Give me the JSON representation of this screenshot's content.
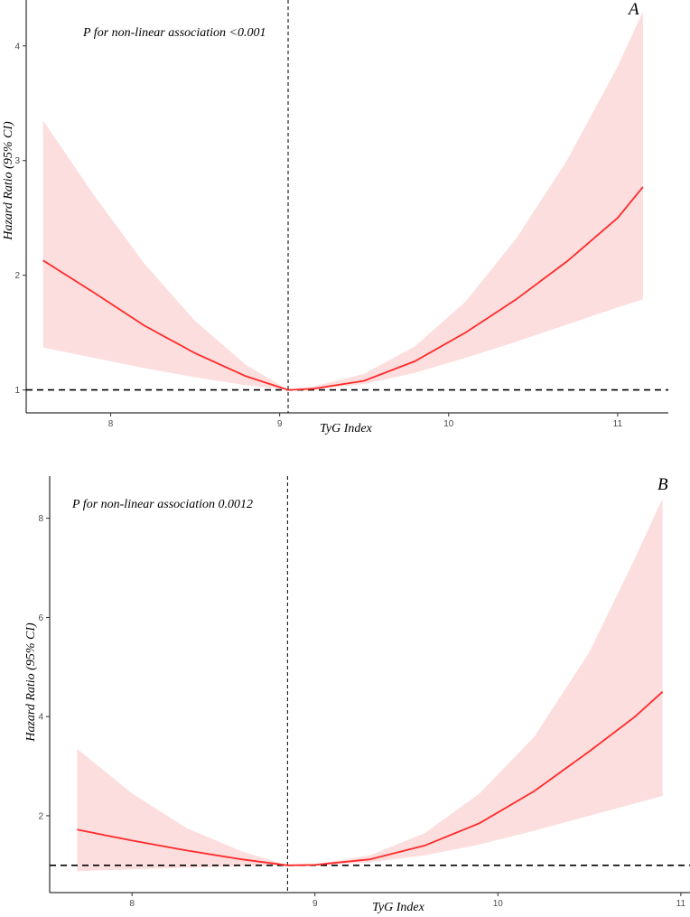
{
  "chart_data": [
    {
      "type": "line",
      "panel": "A",
      "title": "",
      "xlabel": "TyG Index",
      "ylabel": "Hazard Ratio (95% CI)",
      "annotation": "P for non-linear association <0.001",
      "xlim": [
        7.5,
        11.3
      ],
      "ylim": [
        0.8,
        4.4
      ],
      "xticks": [
        8,
        9,
        10,
        11
      ],
      "yticks": [
        1,
        2,
        3,
        4
      ],
      "reference_hr": 1,
      "reference_x": 9.05,
      "series": [
        {
          "name": "Hazard Ratio",
          "color": "#ff2a2a",
          "x": [
            7.6,
            7.9,
            8.2,
            8.5,
            8.8,
            9.05,
            9.2,
            9.5,
            9.8,
            10.1,
            10.4,
            10.7,
            11.0,
            11.15
          ],
          "values": [
            2.13,
            1.85,
            1.56,
            1.32,
            1.12,
            1.0,
            1.01,
            1.08,
            1.25,
            1.5,
            1.79,
            2.12,
            2.5,
            2.77
          ]
        },
        {
          "name": "95% CI lower",
          "color": "#fddede",
          "x": [
            7.6,
            7.9,
            8.2,
            8.5,
            8.8,
            9.05,
            9.2,
            9.5,
            9.8,
            10.1,
            10.4,
            10.7,
            11.0,
            11.15
          ],
          "values": [
            1.37,
            1.28,
            1.19,
            1.11,
            1.04,
            1.0,
            1.01,
            1.05,
            1.15,
            1.28,
            1.42,
            1.57,
            1.72,
            1.79
          ]
        },
        {
          "name": "95% CI upper",
          "color": "#fddede",
          "x": [
            7.6,
            7.9,
            8.2,
            8.5,
            8.8,
            9.05,
            9.2,
            9.5,
            9.8,
            10.1,
            10.4,
            10.7,
            11.0,
            11.15
          ],
          "values": [
            3.35,
            2.7,
            2.1,
            1.6,
            1.22,
            1.0,
            1.03,
            1.14,
            1.38,
            1.77,
            2.32,
            3.0,
            3.82,
            4.3
          ]
        }
      ]
    },
    {
      "type": "line",
      "panel": "B",
      "title": "",
      "xlabel": "TyG Index",
      "ylabel": "Hazard Ratio (95% CI)",
      "annotation": "P for non-linear association 0.0012",
      "xlim": [
        7.55,
        11.05
      ],
      "ylim": [
        0.45,
        8.85
      ],
      "xticks": [
        8,
        9,
        10,
        11
      ],
      "yticks": [
        2,
        4,
        6,
        8
      ],
      "reference_hr": 1,
      "reference_x": 8.85,
      "series": [
        {
          "name": "Hazard Ratio",
          "color": "#ff2a2a",
          "x": [
            7.7,
            8.0,
            8.3,
            8.6,
            8.85,
            9.0,
            9.3,
            9.6,
            9.9,
            10.2,
            10.5,
            10.75,
            10.9
          ],
          "values": [
            1.72,
            1.5,
            1.3,
            1.12,
            1.0,
            1.01,
            1.12,
            1.4,
            1.85,
            2.5,
            3.3,
            4.0,
            4.5
          ]
        },
        {
          "name": "95% CI lower",
          "color": "#fddede",
          "x": [
            7.7,
            8.0,
            8.3,
            8.6,
            8.85,
            9.0,
            9.3,
            9.6,
            9.9,
            10.2,
            10.5,
            10.75,
            10.9
          ],
          "values": [
            0.88,
            0.92,
            0.95,
            0.98,
            1.0,
            1.0,
            1.06,
            1.2,
            1.42,
            1.7,
            2.0,
            2.25,
            2.4
          ]
        },
        {
          "name": "95% CI upper",
          "color": "#fddede",
          "x": [
            7.7,
            8.0,
            8.3,
            8.6,
            8.85,
            9.0,
            9.3,
            9.6,
            9.9,
            10.2,
            10.5,
            10.75,
            10.9
          ],
          "values": [
            3.35,
            2.45,
            1.75,
            1.28,
            1.0,
            1.02,
            1.2,
            1.65,
            2.45,
            3.6,
            5.3,
            7.2,
            8.4
          ]
        }
      ]
    }
  ]
}
